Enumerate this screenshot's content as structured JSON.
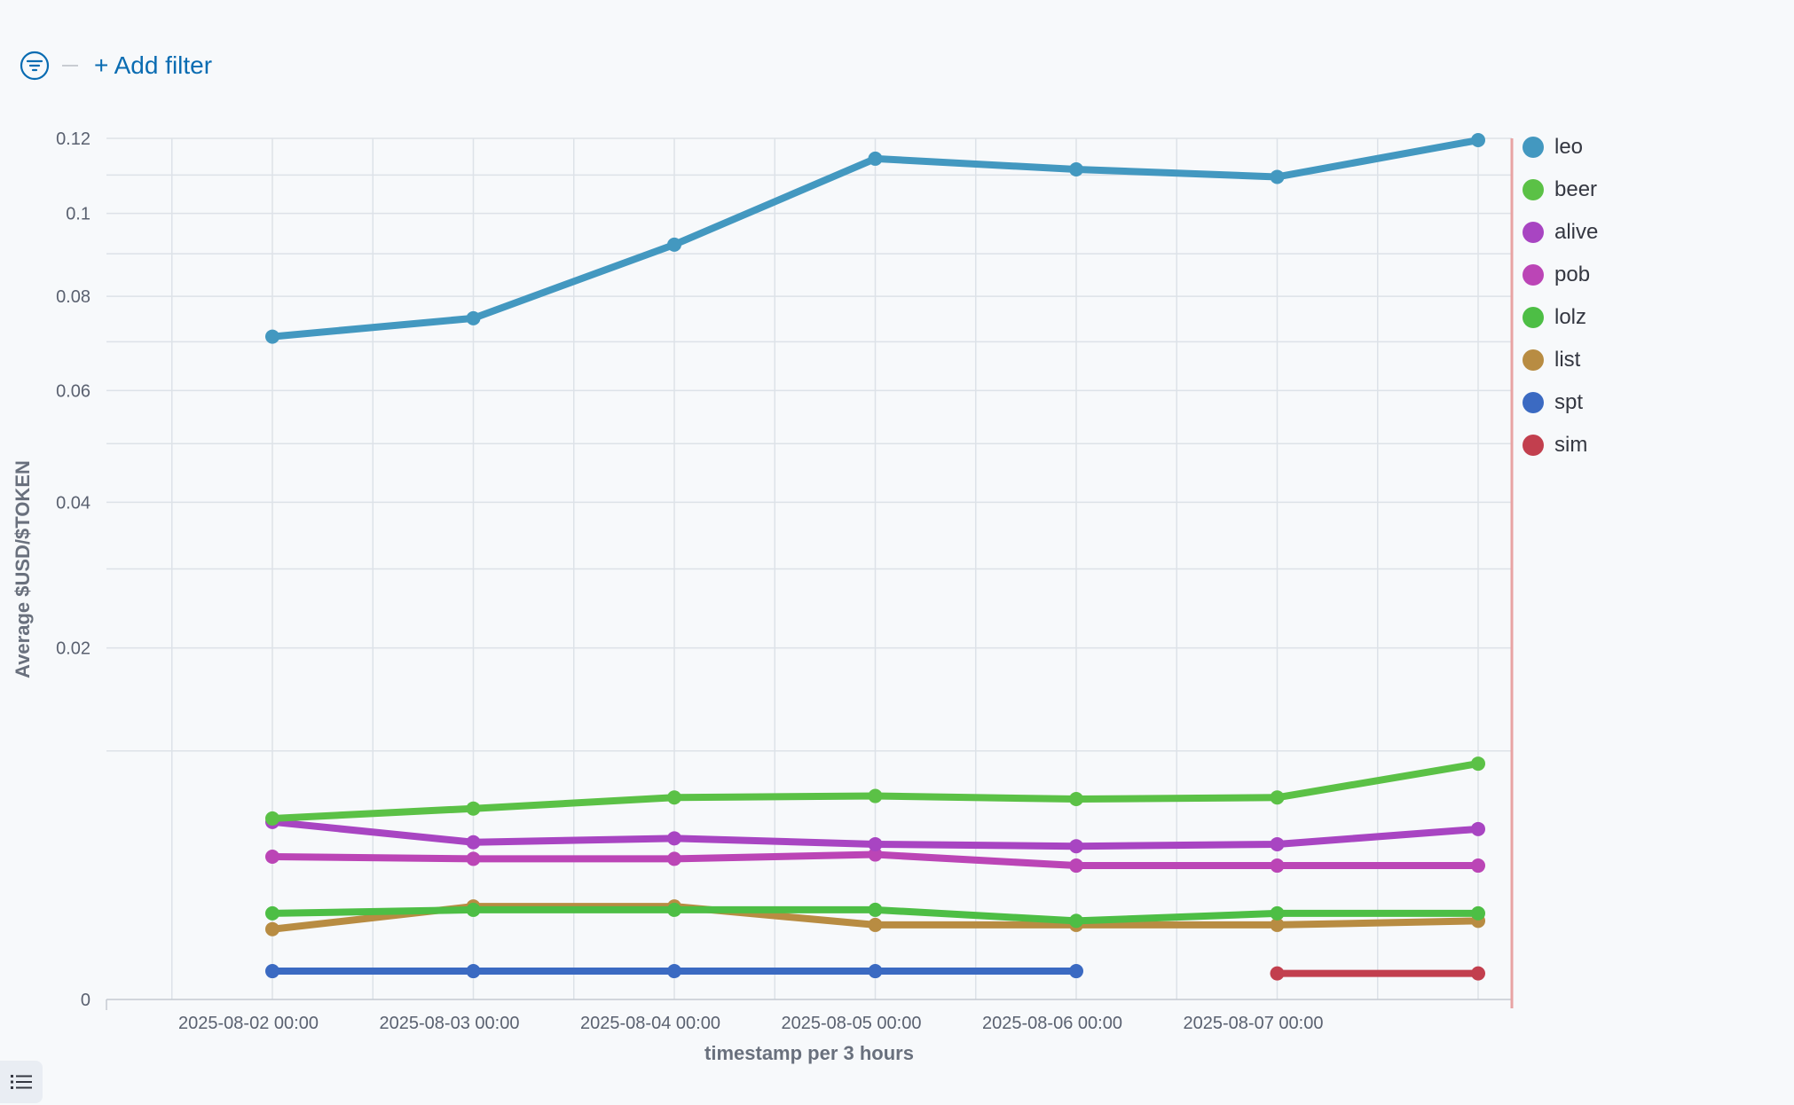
{
  "filter_bar": {
    "filter_icon": "filter-icon",
    "add_filter_label": "+ Add filter"
  },
  "legend_toggle_icon": "list-icon",
  "chart_data": {
    "type": "line",
    "xlabel": "timestamp per 3 hours",
    "ylabel": "Average $USD/$TOKEN",
    "y_scale": "sqrt",
    "ylim": [
      0,
      0.12
    ],
    "y_ticks": [
      0,
      0.02,
      0.04,
      0.06,
      0.08,
      0.1,
      0.12
    ],
    "y_tick_labels": [
      "0",
      "0.02",
      "0.04",
      "0.06",
      "0.08",
      "0.1",
      "0.12"
    ],
    "x_tick_labels": [
      "2025-08-02 00:00",
      "2025-08-03 00:00",
      "2025-08-04 00:00",
      "2025-08-05 00:00",
      "2025-08-06 00:00",
      "2025-08-07 00:00"
    ],
    "x": [
      "2025-08-02 00:00",
      "2025-08-03 00:00",
      "2025-08-04 00:00",
      "2025-08-05 00:00",
      "2025-08-06 00:00",
      "2025-08-07 00:00",
      "2025-08-08 00:00"
    ],
    "grid": true,
    "legend_position": "right",
    "series": [
      {
        "name": "leo",
        "color": "#4398c0",
        "values": [
          0.0711,
          0.0751,
          0.0922,
          0.1144,
          0.1115,
          0.1095,
          0.1195
        ]
      },
      {
        "name": "beer",
        "color": "#5bc146",
        "values": [
          0.0053,
          0.0059,
          0.0066,
          0.0067,
          0.0065,
          0.0066,
          0.009
        ]
      },
      {
        "name": "alive",
        "color": "#a845c2",
        "values": [
          0.0051,
          0.004,
          0.0042,
          0.0039,
          0.0038,
          0.0039,
          0.0047
        ]
      },
      {
        "name": "pob",
        "color": "#bb45b6",
        "values": [
          0.0033,
          0.0032,
          0.0032,
          0.0034,
          0.0029,
          0.0029,
          0.0029
        ]
      },
      {
        "name": "lolz",
        "color": "#4dbe45",
        "values": [
          0.0012,
          0.0013,
          0.0013,
          0.0013,
          0.001,
          0.0012,
          0.0012
        ]
      },
      {
        "name": "list",
        "color": "#b88c42",
        "values": [
          0.0008,
          0.0014,
          0.0014,
          0.0009,
          0.0009,
          0.0009,
          0.001
        ]
      },
      {
        "name": "spt",
        "color": "#3b6ac2",
        "values": [
          0.00013,
          0.00013,
          0.00013,
          0.00013,
          0.00013,
          null,
          null
        ]
      },
      {
        "name": "sim",
        "color": "#c23f4e",
        "values": [
          null,
          null,
          null,
          null,
          null,
          0.00011,
          0.00011
        ]
      }
    ]
  }
}
